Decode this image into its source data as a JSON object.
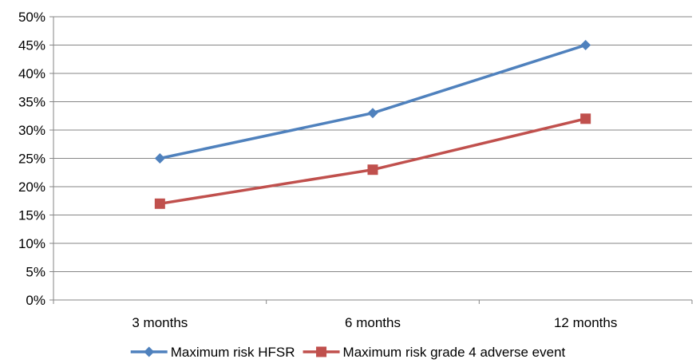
{
  "chart_data": {
    "type": "line",
    "categories": [
      "3 months",
      "6 months",
      "12 months"
    ],
    "series": [
      {
        "name": "Maximum risk HFSR",
        "values": [
          25,
          33,
          45
        ],
        "color": "#4f81bd",
        "marker": "diamond"
      },
      {
        "name": "Maximum risk grade 4 adverse event",
        "values": [
          17,
          23,
          32
        ],
        "color": "#c0504d",
        "marker": "square"
      }
    ],
    "ylim": [
      0,
      50
    ],
    "yticks": [
      "0%",
      "5%",
      "10%",
      "15%",
      "20%",
      "25%",
      "30%",
      "35%",
      "40%",
      "45%",
      "50%"
    ],
    "y_tick_values": [
      0,
      5,
      10,
      15,
      20,
      25,
      30,
      35,
      40,
      45,
      50
    ],
    "grid": true,
    "legend": "bottom",
    "title": "",
    "xlabel": "",
    "ylabel": ""
  }
}
